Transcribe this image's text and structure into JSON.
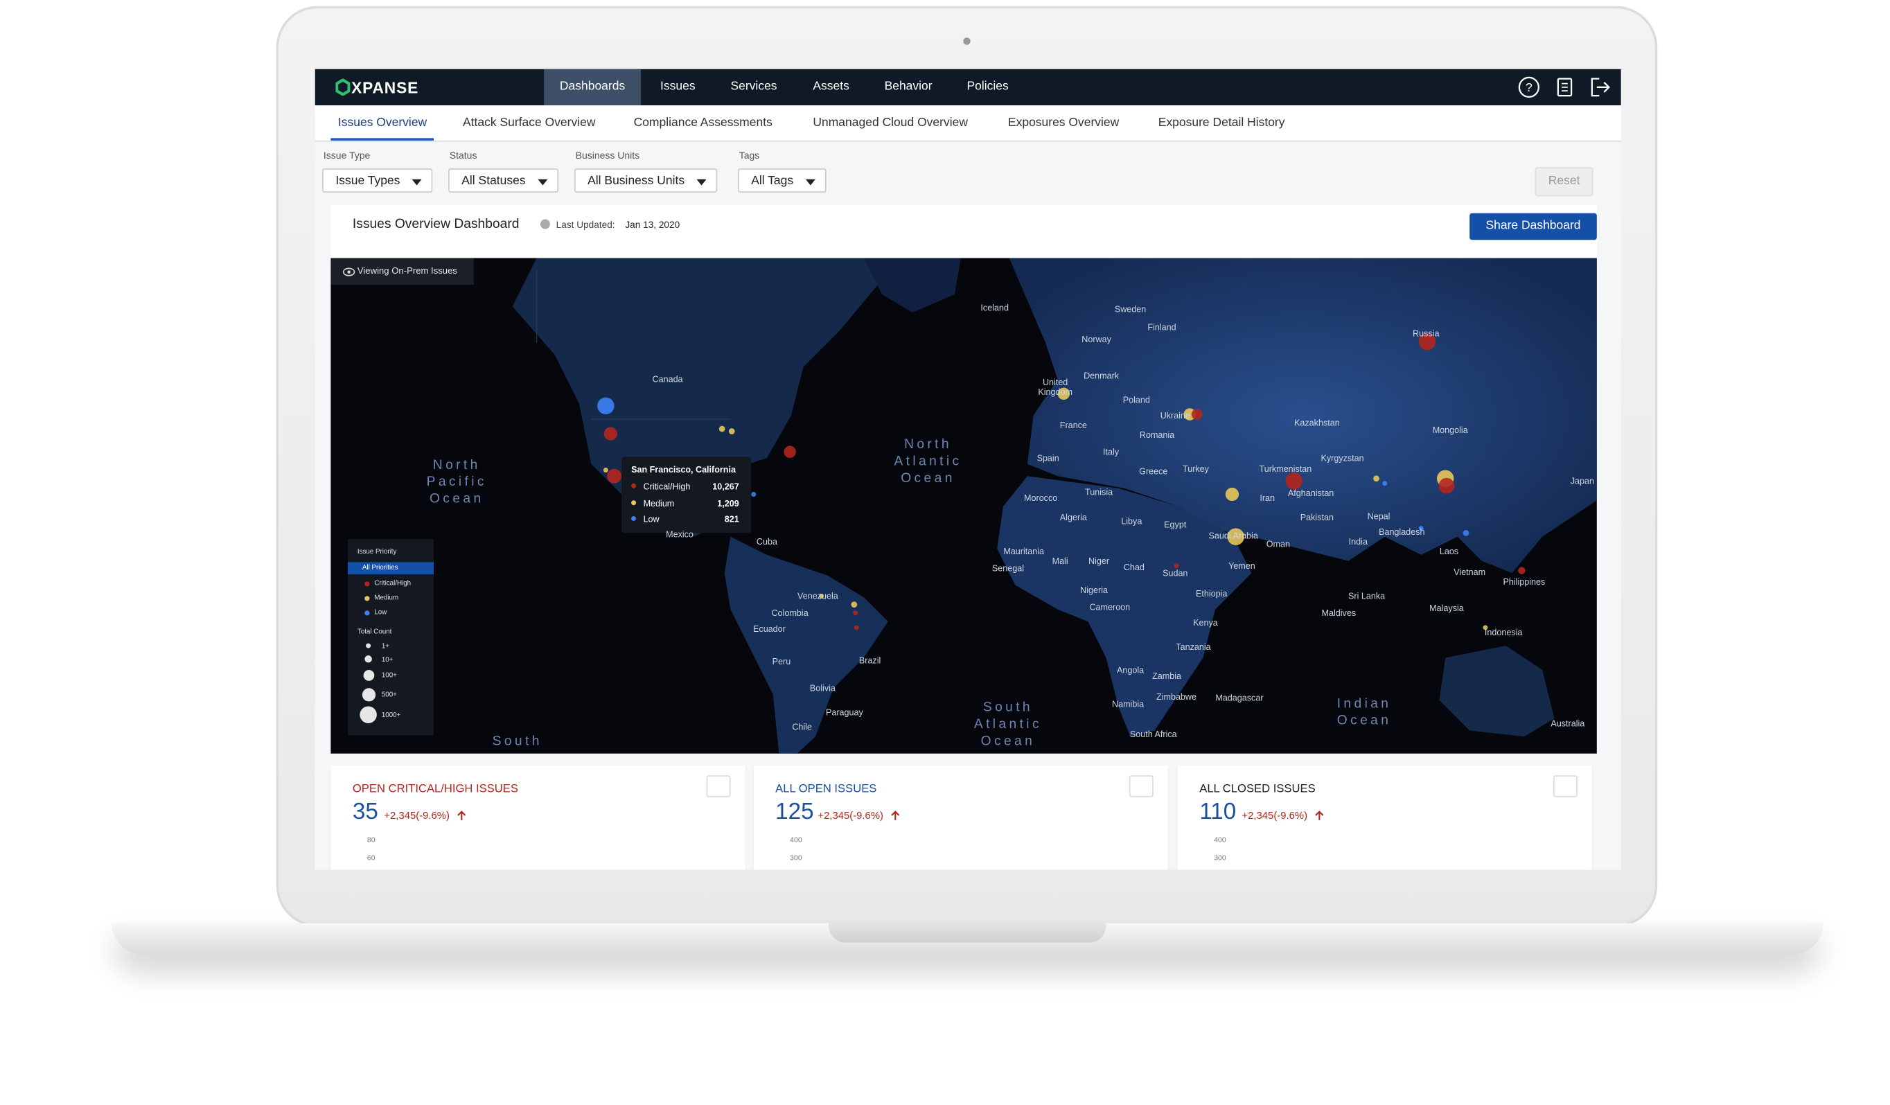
{
  "nav": {
    "brand": "XPANSE",
    "items": [
      "Dashboards",
      "Issues",
      "Services",
      "Assets",
      "Behavior",
      "Policies"
    ]
  },
  "tabs": [
    "Issues Overview",
    "Attack Surface Overview",
    "Compliance Assessments",
    "Unmanaged Cloud Overview",
    "Exposures Overview",
    "Exposure Detail History"
  ],
  "filters": [
    {
      "label": "Issue Type",
      "value": "Issue Types"
    },
    {
      "label": "Status",
      "value": "All Statuses"
    },
    {
      "label": "Business Units",
      "value": "All Business Units"
    },
    {
      "label": "Tags",
      "value": "All Tags"
    }
  ],
  "reset": "Reset",
  "header": {
    "title": "Issues Overview Dashboard",
    "updated_label": "Last Updated:",
    "updated_date": "Jan 13, 2020",
    "share": "Share Dashboard"
  },
  "map": {
    "badge": "Viewing On-Prem Issues",
    "labels": [
      "Iceland",
      "Sweden",
      "Finland",
      "Norway",
      "Canada",
      "United Kingdom",
      "Denmark",
      "Poland",
      "Ukraine",
      "France",
      "Romania",
      "Kazakhstan",
      "Mongolia",
      "Russia",
      "Spain",
      "Italy",
      "Greece",
      "Turkey",
      "Turkmenistan",
      "Kyrgyzstan",
      "Afghanistan",
      "Iran",
      "Japan",
      "Tunisia",
      "Morocco",
      "Algeria",
      "Libya",
      "Egypt",
      "Saudi Arabia",
      "Pakistan",
      "Nepal",
      "India",
      "Bangladesh",
      "Oman",
      "Laos",
      "Mauritania",
      "Mali",
      "Niger",
      "Chad",
      "Sudan",
      "Yemen",
      "Vietnam",
      "Philippines",
      "Senegal",
      "Nigeria",
      "Ethiopia",
      "Sri Lanka",
      "Maldives",
      "Malaysia",
      "Cameroon",
      "Kenya",
      "Indonesia",
      "Tanzania",
      "Angola",
      "Zambia",
      "Zimbabwe",
      "Madagascar",
      "Namibia",
      "South Africa",
      "Australia",
      "Cuba",
      "Venezuela",
      "Colombia",
      "Ecuador",
      "Peru",
      "Brazil",
      "Bolivia",
      "Paraguay",
      "Chile",
      "Mexico"
    ],
    "oceans": [
      "North Pacific Ocean",
      "North Atlantic Ocean",
      "South Atlantic Ocean",
      "Indian Ocean",
      "South"
    ],
    "tooltip": {
      "title": "San Francisco, California",
      "rows": [
        {
          "label": "Critical/High",
          "value": "10,267"
        },
        {
          "label": "Medium",
          "value": "1,209"
        },
        {
          "label": "Low",
          "value": "821"
        }
      ]
    },
    "legend": {
      "title": "Issue Priority",
      "all": "All Priorities",
      "priorities": [
        "Critical/High",
        "Medium",
        "Low"
      ],
      "count_title": "Total Count",
      "counts": [
        "1+",
        "10+",
        "100+",
        "500+",
        "1000+"
      ]
    }
  },
  "cards": [
    {
      "title": "OPEN CRITICAL/HIGH ISSUES",
      "value": "35",
      "change": "+2,345(-9.6%)",
      "yticks": [
        "80",
        "60"
      ]
    },
    {
      "title": "ALL OPEN ISSUES",
      "value": "125",
      "change": "+2,345(-9.6%)",
      "yticks": [
        "400",
        "300"
      ]
    },
    {
      "title": "ALL CLOSED ISSUES",
      "value": "110",
      "change": "+2,345(-9.6%)",
      "yticks": [
        "400",
        "300"
      ]
    }
  ]
}
